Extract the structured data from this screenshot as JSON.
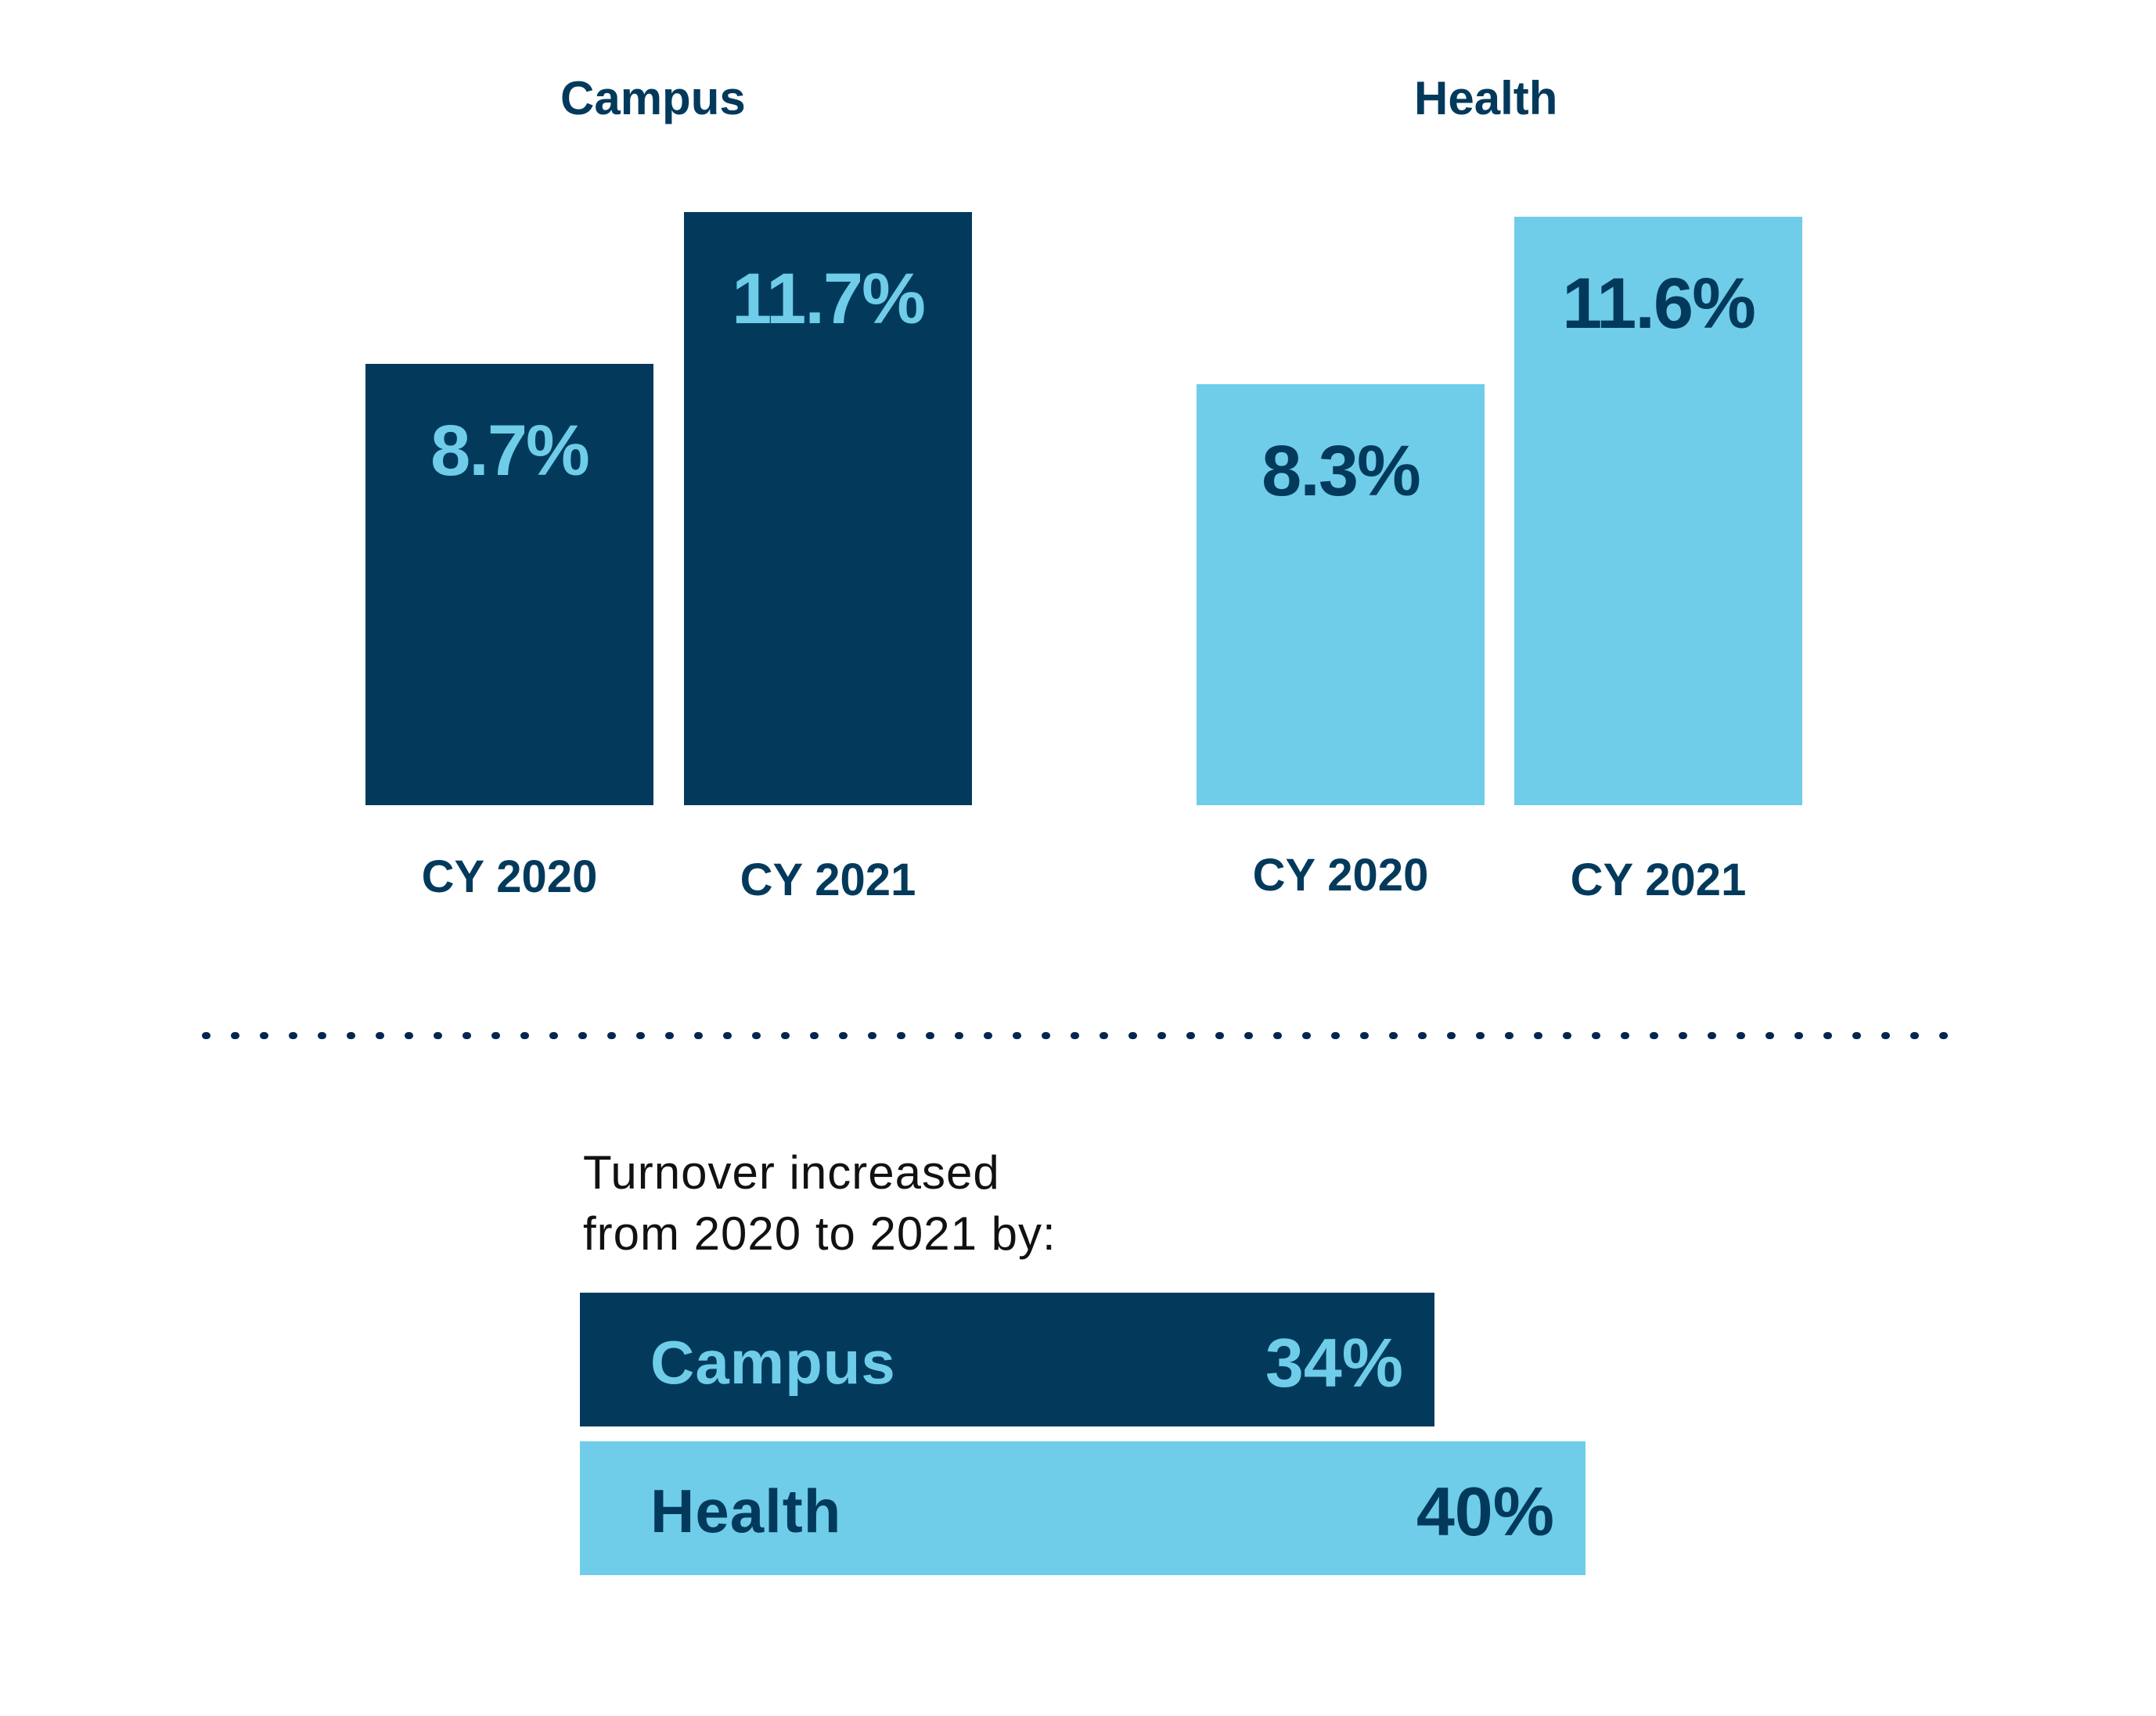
{
  "colors": {
    "navy": "#033a5c",
    "light_blue": "#6fcde9",
    "dot": "#022650",
    "text_dark": "#111111"
  },
  "chart_data": [
    {
      "type": "bar",
      "title": "Campus",
      "categories": [
        "CY 2020",
        "CY 2021"
      ],
      "values": [
        8.7,
        11.7
      ],
      "value_labels": [
        "8.7%",
        "11.7%"
      ],
      "unit": "%",
      "bar_color": "#033a5c",
      "label_color": "#6fcde9",
      "xlabel": "",
      "ylabel": "",
      "ylim": [
        0,
        11.7
      ],
      "grid": false,
      "legend": "none"
    },
    {
      "type": "bar",
      "title": "Health",
      "categories": [
        "CY 2020",
        "CY 2021"
      ],
      "values": [
        8.3,
        11.6
      ],
      "value_labels": [
        "8.3%",
        "11.6%"
      ],
      "unit": "%",
      "bar_color": "#6fcde9",
      "label_color": "#033a5c",
      "xlabel": "",
      "ylabel": "",
      "ylim": [
        0,
        11.7
      ],
      "grid": false,
      "legend": "none"
    },
    {
      "type": "bar",
      "orientation": "horizontal",
      "title": "Turnover increased from 2020 to 2021 by:",
      "categories": [
        "Campus",
        "Health"
      ],
      "values": [
        34,
        40
      ],
      "value_labels": [
        "34%",
        "40%"
      ],
      "unit": "%",
      "xlim": [
        0,
        40
      ],
      "grid": false,
      "legend": "none"
    }
  ],
  "summary": {
    "intro_lines": [
      "Turnover increased",
      "from 2020 to 2021 by:"
    ]
  }
}
